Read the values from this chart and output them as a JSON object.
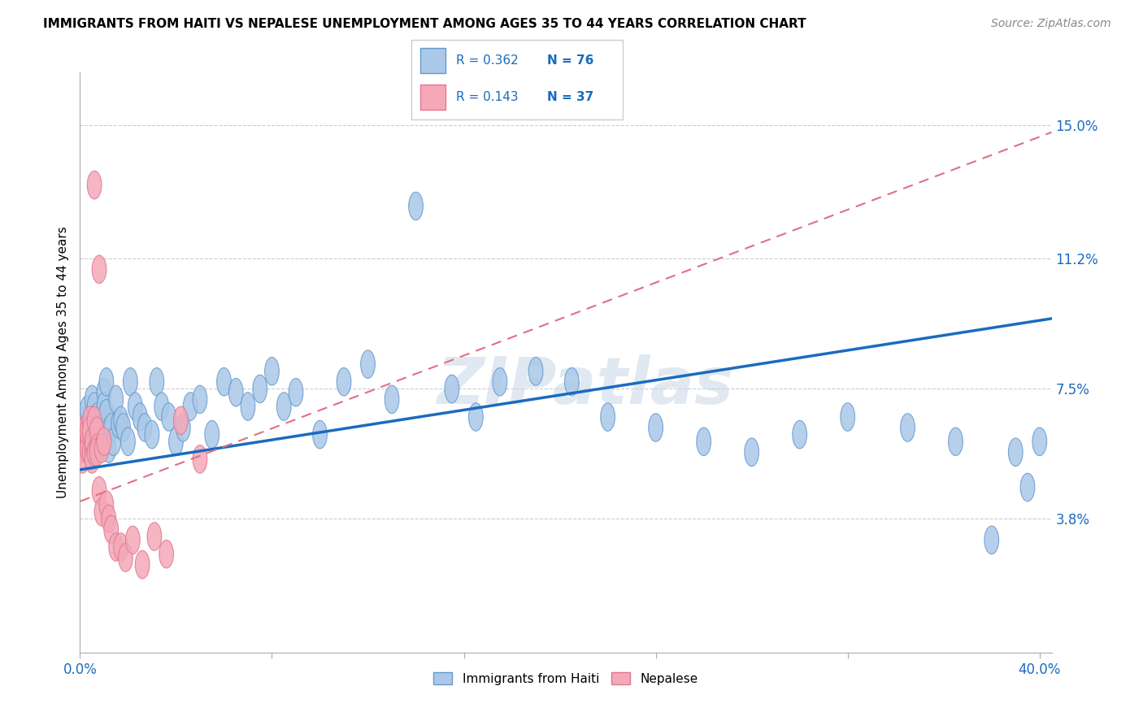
{
  "title": "IMMIGRANTS FROM HAITI VS NEPALESE UNEMPLOYMENT AMONG AGES 35 TO 44 YEARS CORRELATION CHART",
  "source": "Source: ZipAtlas.com",
  "ylabel": "Unemployment Among Ages 35 to 44 years",
  "xlim": [
    0.0,
    0.405
  ],
  "ylim": [
    0.0,
    0.165
  ],
  "ytick_vals": [
    0.038,
    0.075,
    0.112,
    0.15
  ],
  "ytick_labels": [
    "3.8%",
    "7.5%",
    "11.2%",
    "15.0%"
  ],
  "xtick_vals": [
    0.0,
    0.08,
    0.16,
    0.24,
    0.32,
    0.4
  ],
  "xtick_labels": [
    "0.0%",
    "",
    "",
    "",
    "",
    "40.0%"
  ],
  "legend_r_haiti": "R = 0.362",
  "legend_n_haiti": "N = 76",
  "legend_r_nepal": "R = 0.143",
  "legend_n_nepal": "N = 37",
  "legend_label_haiti": "Immigrants from Haiti",
  "legend_label_nepal": "Nepalese",
  "haiti_color": "#aac8e8",
  "nepal_color": "#f4a8b8",
  "haiti_edge_color": "#6699cc",
  "nepal_edge_color": "#e07890",
  "haiti_line_color": "#1a6bbf",
  "nepal_line_color": "#e07080",
  "value_color": "#1a6bbf",
  "grid_color": "#cccccc",
  "background_color": "#ffffff",
  "watermark": "ZIPatlas",
  "haiti_x": [
    0.001,
    0.001,
    0.002,
    0.002,
    0.003,
    0.003,
    0.004,
    0.004,
    0.005,
    0.005,
    0.005,
    0.006,
    0.006,
    0.007,
    0.007,
    0.007,
    0.008,
    0.008,
    0.009,
    0.009,
    0.01,
    0.01,
    0.01,
    0.011,
    0.011,
    0.012,
    0.012,
    0.013,
    0.014,
    0.015,
    0.016,
    0.017,
    0.018,
    0.02,
    0.021,
    0.023,
    0.025,
    0.027,
    0.03,
    0.032,
    0.034,
    0.037,
    0.04,
    0.043,
    0.046,
    0.05,
    0.055,
    0.06,
    0.065,
    0.07,
    0.075,
    0.08,
    0.085,
    0.09,
    0.1,
    0.11,
    0.12,
    0.13,
    0.14,
    0.155,
    0.165,
    0.175,
    0.19,
    0.205,
    0.22,
    0.24,
    0.26,
    0.28,
    0.3,
    0.32,
    0.345,
    0.365,
    0.38,
    0.39,
    0.395,
    0.4
  ],
  "haiti_y": [
    0.063,
    0.058,
    0.066,
    0.06,
    0.063,
    0.069,
    0.06,
    0.065,
    0.06,
    0.072,
    0.056,
    0.07,
    0.062,
    0.067,
    0.059,
    0.062,
    0.064,
    0.066,
    0.067,
    0.062,
    0.074,
    0.07,
    0.06,
    0.077,
    0.068,
    0.063,
    0.058,
    0.064,
    0.06,
    0.072,
    0.065,
    0.066,
    0.064,
    0.06,
    0.077,
    0.07,
    0.067,
    0.064,
    0.062,
    0.077,
    0.07,
    0.067,
    0.06,
    0.064,
    0.07,
    0.072,
    0.062,
    0.077,
    0.074,
    0.07,
    0.075,
    0.08,
    0.07,
    0.074,
    0.062,
    0.077,
    0.082,
    0.072,
    0.127,
    0.075,
    0.067,
    0.077,
    0.08,
    0.077,
    0.067,
    0.064,
    0.06,
    0.057,
    0.062,
    0.067,
    0.064,
    0.06,
    0.032,
    0.057,
    0.047,
    0.06
  ],
  "nepal_x": [
    0.001,
    0.001,
    0.001,
    0.002,
    0.002,
    0.003,
    0.003,
    0.003,
    0.004,
    0.004,
    0.004,
    0.005,
    0.005,
    0.005,
    0.006,
    0.006,
    0.006,
    0.007,
    0.007,
    0.007,
    0.008,
    0.008,
    0.009,
    0.009,
    0.01,
    0.011,
    0.012,
    0.013,
    0.015,
    0.017,
    0.019,
    0.022,
    0.026,
    0.031,
    0.036,
    0.042,
    0.05
  ],
  "nepal_y": [
    0.063,
    0.058,
    0.055,
    0.063,
    0.06,
    0.06,
    0.058,
    0.063,
    0.066,
    0.063,
    0.057,
    0.058,
    0.06,
    0.055,
    0.066,
    0.133,
    0.057,
    0.063,
    0.058,
    0.057,
    0.046,
    0.109,
    0.058,
    0.04,
    0.06,
    0.042,
    0.038,
    0.035,
    0.03,
    0.03,
    0.027,
    0.032,
    0.025,
    0.033,
    0.028,
    0.066,
    0.055
  ],
  "haiti_trend_x0": 0.0,
  "haiti_trend_y0": 0.052,
  "haiti_trend_x1": 0.405,
  "haiti_trend_y1": 0.095,
  "nepal_trend_x0": 0.0,
  "nepal_trend_y0": 0.043,
  "nepal_trend_x1": 0.405,
  "nepal_trend_y1": 0.148
}
